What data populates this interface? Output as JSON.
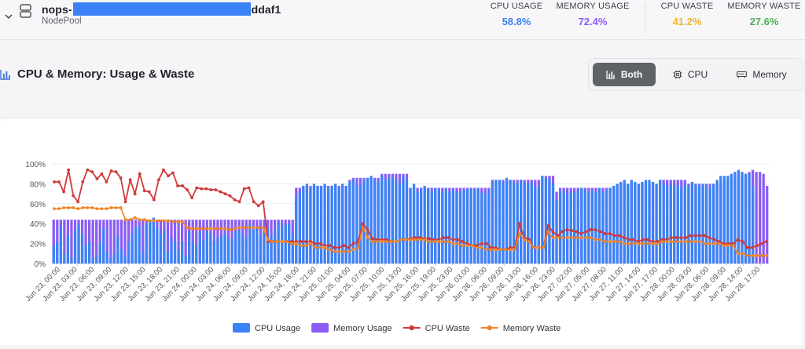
{
  "nodepool": {
    "name_prefix": "nops-",
    "name_suffix": "ddaf1",
    "type_label": "NodePool"
  },
  "metrics": [
    {
      "label": "CPU USAGE",
      "value": "58.8%",
      "color": "#3b82f6"
    },
    {
      "label": "MEMORY USAGE",
      "value": "72.4%",
      "color": "#8b5cf6"
    },
    {
      "label": "CPU WASTE",
      "value": "41.2%",
      "color": "#f4b526"
    },
    {
      "label": "MEMORY WASTE",
      "value": "27.6%",
      "color": "#4caf50"
    }
  ],
  "section": {
    "title": "CPU & Memory: Usage & Waste"
  },
  "toggle": {
    "both": "Both",
    "cpu": "CPU",
    "memory": "Memory",
    "active": "both"
  },
  "icons": [
    "chevron-down-icon",
    "stack-icon",
    "bar-chart-icon",
    "cpu-icon",
    "memory-icon"
  ],
  "chart_data": {
    "type": "bar",
    "y_unit": "%",
    "ylim": [
      0,
      100
    ],
    "yticks": [
      "0%",
      "20%",
      "40%",
      "60%",
      "80%",
      "100%"
    ],
    "grid": true,
    "legend_position": "bottom",
    "x_ticks": [
      "Jun 23, 00:00",
      "Jun 23, 03:00",
      "Jun 23, 06:00",
      "Jun 23, 09:00",
      "Jun 23, 12:00",
      "Jun 23, 15:00",
      "Jun 23, 18:00",
      "Jun 23, 21:00",
      "Jun 24, 00:00",
      "Jun 24, 03:00",
      "Jun 24, 06:00",
      "Jun 24, 09:00",
      "Jun 24, 12:00",
      "Jun 24, 15:00",
      "Jun 24, 18:00",
      "Jun 24, 21:00",
      "Jun 25, 01:00",
      "Jun 25, 04:00",
      "Jun 25, 07:00",
      "Jun 25, 10:00",
      "Jun 25, 13:00",
      "Jun 25, 16:00",
      "Jun 25, 19:00",
      "Jun 25, 23:00",
      "Jun 26, 03:00",
      "Jun 26, 06:00",
      "Jun 26, 09:00",
      "Jun 26, 13:00",
      "Jun 26, 16:00",
      "Jun 26, 23:00",
      "Jun 27, 02:00",
      "Jun 27, 05:00",
      "Jun 27, 08:00",
      "Jun 27, 11:00",
      "Jun 27, 14:00",
      "Jun 27, 17:00",
      "Jun 28, 00:00",
      "Jun 28, 03:00",
      "Jun 28, 06:00",
      "Jun 28, 09:00",
      "Jun 28, 14:00",
      "Jun 28, 17:00"
    ],
    "series": [
      {
        "name": "CPU Usage",
        "kind": "bar",
        "color": "#3b82f6",
        "values": [
          18,
          22,
          38,
          10,
          28,
          5,
          34,
          40,
          30,
          18,
          22,
          6,
          8,
          20,
          36,
          12,
          6,
          10,
          28,
          14,
          8,
          22,
          30,
          36,
          38,
          12,
          40,
          44,
          46,
          36,
          30,
          34,
          12,
          26,
          22,
          14,
          22,
          8,
          32,
          22,
          18,
          32,
          24,
          36,
          30,
          22,
          26,
          28,
          30,
          26,
          24,
          32,
          34,
          30,
          26,
          40,
          34,
          36,
          28,
          32,
          36,
          26,
          34,
          42,
          38,
          40,
          40,
          30,
          66,
          72,
          78,
          80,
          76,
          80,
          78,
          78,
          80,
          76,
          78,
          80,
          76,
          80,
          78,
          82,
          84,
          78,
          80,
          84,
          86,
          88,
          84,
          82,
          88,
          84,
          86,
          88,
          84,
          80,
          88,
          84,
          76,
          80,
          72,
          76,
          78,
          76,
          72,
          76,
          74,
          72,
          76,
          72,
          74,
          72,
          72,
          74,
          74,
          76,
          74,
          76,
          72,
          70,
          74,
          82,
          84,
          84,
          82,
          86,
          84,
          82,
          80,
          84,
          82,
          80,
          82,
          78,
          76,
          88,
          86,
          84,
          80,
          64,
          72,
          74,
          70,
          72,
          72,
          74,
          76,
          74,
          72,
          74,
          72,
          76,
          72,
          74,
          76,
          78,
          80,
          82,
          84,
          80,
          84,
          82,
          80,
          82,
          84,
          84,
          82,
          80,
          84,
          80,
          78,
          80,
          78,
          80,
          76,
          80,
          78,
          82,
          80,
          78,
          80,
          80,
          76,
          80,
          84,
          88,
          88,
          88,
          90,
          92,
          94,
          92,
          90,
          90,
          78
        ]
      },
      {
        "name": "Memory Usage",
        "kind": "bar",
        "color": "#8b5cf6",
        "values": [
          44,
          44,
          44,
          44,
          44,
          44,
          44,
          44,
          44,
          44,
          44,
          44,
          44,
          44,
          44,
          44,
          44,
          44,
          44,
          44,
          44,
          44,
          44,
          44,
          44,
          44,
          44,
          44,
          44,
          44,
          44,
          44,
          44,
          44,
          44,
          44,
          44,
          44,
          44,
          44,
          44,
          44,
          44,
          44,
          44,
          44,
          44,
          44,
          44,
          44,
          44,
          44,
          44,
          44,
          44,
          44,
          44,
          44,
          44,
          44,
          44,
          44,
          44,
          44,
          44,
          44,
          44,
          44,
          76,
          76,
          78,
          78,
          78,
          78,
          78,
          78,
          78,
          78,
          78,
          78,
          78,
          78,
          78,
          84,
          86,
          86,
          86,
          86,
          86,
          86,
          86,
          86,
          90,
          90,
          90,
          90,
          90,
          90,
          90,
          90,
          76,
          76,
          76,
          76,
          76,
          76,
          76,
          76,
          76,
          76,
          76,
          76,
          76,
          76,
          76,
          76,
          76,
          76,
          76,
          76,
          76,
          76,
          76,
          84,
          84,
          84,
          84,
          84,
          84,
          84,
          84,
          84,
          84,
          84,
          84,
          84,
          84,
          88,
          88,
          88,
          88,
          72,
          76,
          76,
          76,
          76,
          76,
          76,
          76,
          76,
          76,
          76,
          76,
          76,
          76,
          76,
          76,
          76,
          80,
          80,
          80,
          80,
          80,
          80,
          80,
          80,
          80,
          80,
          80,
          80,
          84,
          84,
          84,
          84,
          84,
          84,
          84,
          84,
          80,
          80,
          80,
          80,
          80,
          80,
          80,
          80,
          80,
          80,
          84,
          84,
          88,
          88,
          88,
          88,
          90,
          92,
          94,
          92,
          92,
          90,
          78
        ]
      },
      {
        "name": "CPU Waste",
        "kind": "line",
        "color": "#cf3a3a",
        "values": [
          82,
          82,
          72,
          94,
          68,
          62,
          82,
          94,
          92,
          85,
          90,
          82,
          93,
          92,
          86,
          62,
          84,
          70,
          90,
          73,
          72,
          64,
          84,
          94,
          88,
          91,
          78,
          78,
          74,
          66,
          76,
          75,
          75,
          74,
          74,
          72,
          70,
          68,
          64,
          62,
          75,
          76,
          62,
          58,
          62,
          22,
          22,
          22,
          22,
          22,
          22,
          22,
          22,
          22,
          22,
          20,
          20,
          18,
          18,
          16,
          16,
          18,
          16,
          20,
          22,
          40,
          34,
          25,
          24,
          24,
          24,
          22,
          22,
          24,
          24,
          25,
          26,
          26,
          25,
          25,
          24,
          24,
          26,
          26,
          24,
          24,
          22,
          20,
          18,
          18,
          20,
          20,
          16,
          16,
          14,
          14,
          16,
          16,
          40,
          26,
          24,
          16,
          16,
          16,
          38,
          32,
          28,
          32,
          34,
          33,
          32,
          30,
          32,
          34,
          34,
          32,
          30,
          30,
          28,
          28,
          26,
          24,
          24,
          22,
          24,
          24,
          22,
          22,
          24,
          24,
          26,
          26,
          26,
          26,
          28,
          28,
          28,
          28,
          26,
          24,
          22,
          20,
          20,
          20,
          24,
          22,
          16,
          16,
          18,
          20,
          22
        ]
      },
      {
        "name": "Memory Waste",
        "kind": "line",
        "color": "#f0862a",
        "values": [
          55,
          55,
          56,
          56,
          56,
          55,
          56,
          56,
          56,
          55,
          55,
          55,
          56,
          56,
          56,
          44,
          44,
          46,
          44,
          44,
          43,
          43,
          43,
          43,
          43,
          42,
          42,
          42,
          36,
          35,
          35,
          35,
          35,
          35,
          35,
          35,
          35,
          34,
          35,
          36,
          36,
          36,
          36,
          36,
          36,
          24,
          22,
          22,
          22,
          22,
          20,
          20,
          18,
          18,
          20,
          16,
          16,
          16,
          14,
          12,
          12,
          12,
          12,
          14,
          16,
          36,
          26,
          22,
          22,
          22,
          22,
          22,
          22,
          24,
          24,
          24,
          24,
          24,
          24,
          22,
          22,
          22,
          22,
          22,
          20,
          20,
          18,
          18,
          18,
          16,
          16,
          14,
          14,
          14,
          14,
          14,
          14,
          14,
          30,
          24,
          22,
          16,
          16,
          16,
          32,
          26,
          26,
          26,
          26,
          26,
          26,
          26,
          26,
          26,
          24,
          24,
          22,
          22,
          22,
          22,
          20,
          20,
          20,
          20,
          20,
          20,
          20,
          20,
          22,
          22,
          22,
          22,
          22,
          22,
          22,
          22,
          22,
          20,
          20,
          20,
          20,
          18,
          18,
          18,
          10,
          10,
          8,
          8,
          8,
          8,
          8
        ]
      }
    ]
  }
}
